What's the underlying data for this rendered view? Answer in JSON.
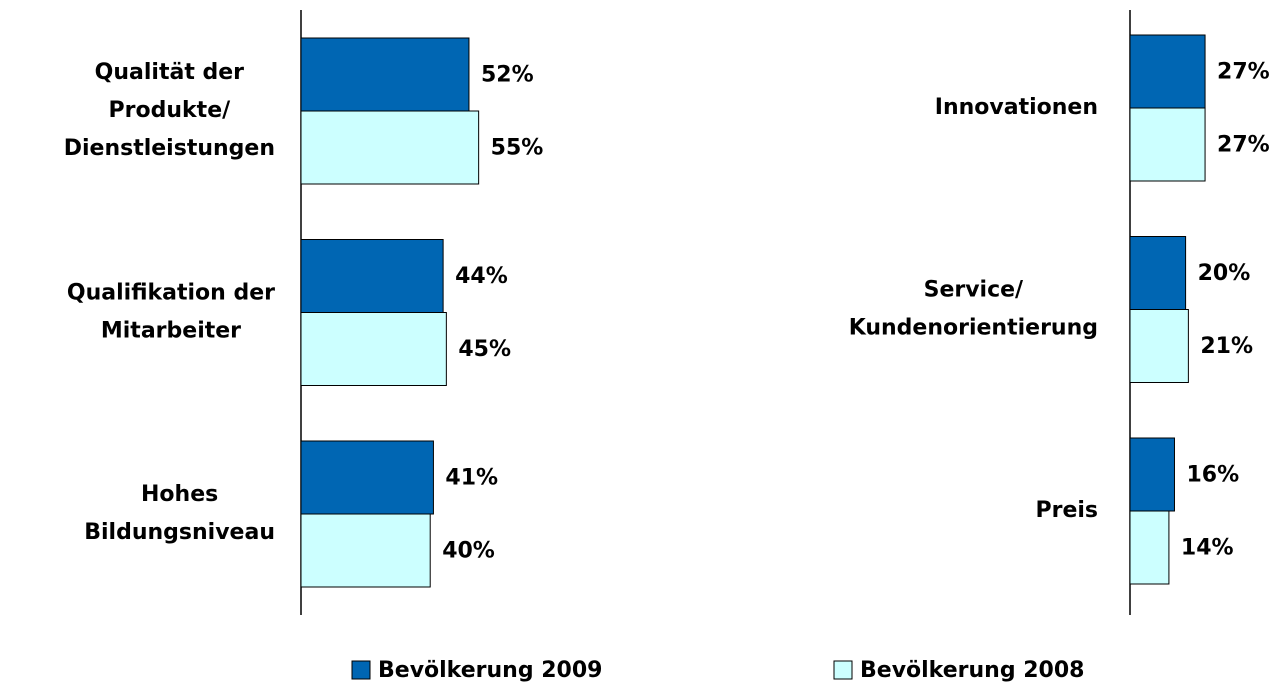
{
  "legend": [
    {
      "name": "Bevölkerung 2009",
      "color": "#0066b3"
    },
    {
      "name": "Bevölkerung 2008",
      "color": "#ccffff"
    }
  ],
  "chart_data": [
    {
      "type": "hbar",
      "categories": [
        "Qualität der\nProdukte/\nDienstleistungen",
        "Qualifikation der\nMitarbeiter",
        "Hohes\nBildungsniveau"
      ],
      "series": [
        {
          "values": [
            52,
            44,
            41
          ],
          "value_labels": [
            "52%",
            "44%",
            "41%"
          ]
        },
        {
          "values": [
            55,
            45,
            40
          ],
          "value_labels": [
            "55%",
            "45%",
            "40%"
          ]
        }
      ],
      "xlim": [
        0,
        100
      ]
    },
    {
      "type": "hbar",
      "categories": [
        "Innovationen",
        "Service/\nKundenorientierung",
        "Preis"
      ],
      "series": [
        {
          "values": [
            27,
            20,
            16
          ],
          "value_labels": [
            "27%",
            "20%",
            "16%"
          ]
        },
        {
          "values": [
            27,
            21,
            14
          ],
          "value_labels": [
            "27%",
            "21%",
            "14%"
          ]
        }
      ],
      "xlim": [
        0,
        100
      ]
    }
  ]
}
